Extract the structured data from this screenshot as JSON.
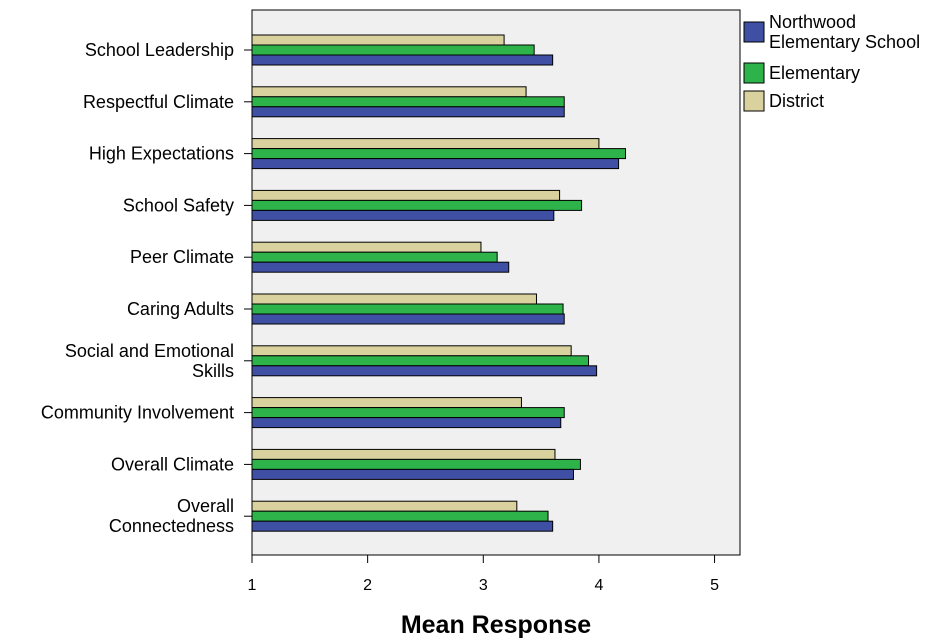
{
  "chart_data": {
    "type": "bar",
    "orientation": "horizontal",
    "xlabel": "Mean Response",
    "xlim": [
      1,
      5.22
    ],
    "xticks": [
      1,
      2,
      3,
      4,
      5
    ],
    "grid": false,
    "legend_position": "right",
    "categories": [
      [
        "School Leadership"
      ],
      [
        "Respectful Climate"
      ],
      [
        "High Expectations"
      ],
      [
        "School Safety"
      ],
      [
        "Peer Climate"
      ],
      [
        "Caring Adults"
      ],
      [
        "Social and Emotional",
        "Skills"
      ],
      [
        "Community Involvement"
      ],
      [
        "Overall Climate"
      ],
      [
        "Overall",
        "Connectedness"
      ]
    ],
    "series": [
      {
        "name": [
          "District"
        ],
        "color": "#d9d29f",
        "values": [
          3.18,
          3.37,
          4.0,
          3.66,
          2.98,
          3.46,
          3.76,
          3.33,
          3.62,
          3.29
        ]
      },
      {
        "name": [
          "Elementary"
        ],
        "color": "#2db34a",
        "values": [
          3.44,
          3.7,
          4.23,
          3.85,
          3.12,
          3.69,
          3.91,
          3.7,
          3.84,
          3.56
        ]
      },
      {
        "name": [
          "Northwood",
          "Elementary School"
        ],
        "color": "#3f4fa3",
        "values": [
          3.6,
          3.7,
          4.17,
          3.61,
          3.22,
          3.7,
          3.98,
          3.67,
          3.78,
          3.6
        ]
      }
    ],
    "legend_order": [
      2,
      1,
      0
    ]
  }
}
